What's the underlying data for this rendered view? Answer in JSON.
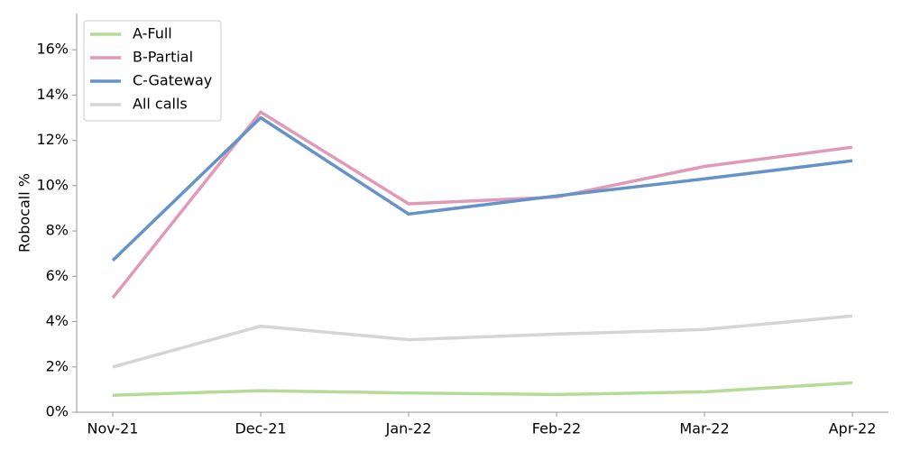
{
  "chart_data": {
    "type": "line",
    "title": "",
    "xlabel": "",
    "ylabel": "Robocall %",
    "categories": [
      "Nov-21",
      "Dec-21",
      "Jan-22",
      "Feb-22",
      "Mar-22",
      "Apr-22"
    ],
    "ylim": [
      0,
      17.6
    ],
    "yticks": [
      0,
      2,
      4,
      6,
      8,
      10,
      12,
      14,
      16
    ],
    "ytick_labels": [
      "0%",
      "2%",
      "4%",
      "6%",
      "8%",
      "10%",
      "12%",
      "14%",
      "16%"
    ],
    "grid": false,
    "legend_position": "top-left",
    "series": [
      {
        "name": "A-Full",
        "color": "#b5dc96",
        "values": [
          0.75,
          0.95,
          0.85,
          0.78,
          0.9,
          1.3
        ]
      },
      {
        "name": "B-Partial",
        "color": "#e09ab8",
        "values": [
          5.05,
          13.25,
          9.2,
          9.5,
          10.85,
          11.7
        ]
      },
      {
        "name": "C-Gateway",
        "color": "#6592c8",
        "values": [
          6.7,
          13.0,
          8.75,
          9.55,
          10.3,
          11.1
        ]
      },
      {
        "name": "All calls",
        "color": "#d5d5d5",
        "values": [
          2.0,
          3.8,
          3.2,
          3.45,
          3.65,
          4.25
        ]
      }
    ]
  }
}
